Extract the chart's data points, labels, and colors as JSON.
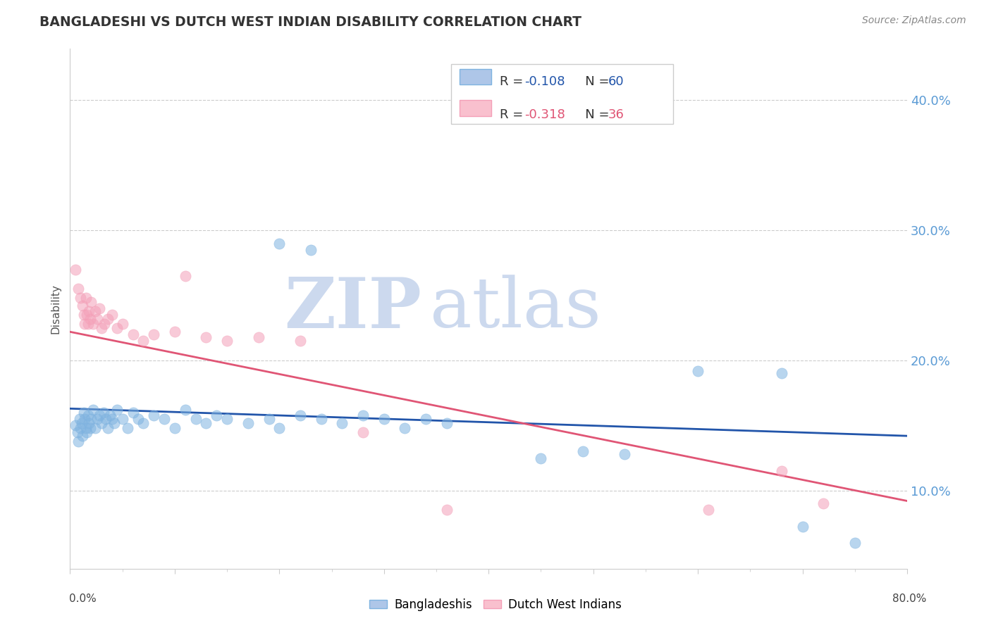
{
  "title": "BANGLADESHI VS DUTCH WEST INDIAN DISABILITY CORRELATION CHART",
  "source_text": "Source: ZipAtlas.com",
  "ylabel": "Disability",
  "yticks": [
    0.1,
    0.2,
    0.3,
    0.4
  ],
  "ytick_labels": [
    "10.0%",
    "20.0%",
    "30.0%",
    "40.0%"
  ],
  "xlim": [
    0.0,
    0.8
  ],
  "ylim": [
    0.04,
    0.44
  ],
  "blue_r": "-0.108",
  "blue_n": "60",
  "pink_r": "-0.318",
  "pink_n": "36",
  "blue_fill": "#aec6e8",
  "pink_fill": "#f9c0ce",
  "blue_scatter_color": "#7fb3e0",
  "pink_scatter_color": "#f4a0b8",
  "blue_line_color": "#2255aa",
  "pink_line_color": "#e05575",
  "blue_scatter": [
    [
      0.005,
      0.15
    ],
    [
      0.007,
      0.145
    ],
    [
      0.008,
      0.138
    ],
    [
      0.009,
      0.155
    ],
    [
      0.01,
      0.148
    ],
    [
      0.011,
      0.152
    ],
    [
      0.012,
      0.142
    ],
    [
      0.013,
      0.16
    ],
    [
      0.014,
      0.155
    ],
    [
      0.015,
      0.148
    ],
    [
      0.016,
      0.145
    ],
    [
      0.017,
      0.158
    ],
    [
      0.018,
      0.152
    ],
    [
      0.019,
      0.148
    ],
    [
      0.02,
      0.155
    ],
    [
      0.022,
      0.162
    ],
    [
      0.024,
      0.148
    ],
    [
      0.026,
      0.155
    ],
    [
      0.028,
      0.158
    ],
    [
      0.03,
      0.152
    ],
    [
      0.032,
      0.16
    ],
    [
      0.034,
      0.155
    ],
    [
      0.036,
      0.148
    ],
    [
      0.038,
      0.158
    ],
    [
      0.04,
      0.155
    ],
    [
      0.042,
      0.152
    ],
    [
      0.045,
      0.162
    ],
    [
      0.05,
      0.155
    ],
    [
      0.055,
      0.148
    ],
    [
      0.06,
      0.16
    ],
    [
      0.065,
      0.155
    ],
    [
      0.07,
      0.152
    ],
    [
      0.08,
      0.158
    ],
    [
      0.09,
      0.155
    ],
    [
      0.1,
      0.148
    ],
    [
      0.11,
      0.162
    ],
    [
      0.12,
      0.155
    ],
    [
      0.13,
      0.152
    ],
    [
      0.14,
      0.158
    ],
    [
      0.15,
      0.155
    ],
    [
      0.17,
      0.152
    ],
    [
      0.19,
      0.155
    ],
    [
      0.2,
      0.148
    ],
    [
      0.22,
      0.158
    ],
    [
      0.24,
      0.155
    ],
    [
      0.26,
      0.152
    ],
    [
      0.28,
      0.158
    ],
    [
      0.3,
      0.155
    ],
    [
      0.32,
      0.148
    ],
    [
      0.34,
      0.155
    ],
    [
      0.36,
      0.152
    ],
    [
      0.2,
      0.29
    ],
    [
      0.23,
      0.285
    ],
    [
      0.45,
      0.125
    ],
    [
      0.49,
      0.13
    ],
    [
      0.53,
      0.128
    ],
    [
      0.6,
      0.192
    ],
    [
      0.68,
      0.19
    ],
    [
      0.7,
      0.072
    ],
    [
      0.75,
      0.06
    ]
  ],
  "pink_scatter": [
    [
      0.005,
      0.27
    ],
    [
      0.008,
      0.255
    ],
    [
      0.01,
      0.248
    ],
    [
      0.012,
      0.242
    ],
    [
      0.013,
      0.235
    ],
    [
      0.014,
      0.228
    ],
    [
      0.015,
      0.248
    ],
    [
      0.016,
      0.235
    ],
    [
      0.017,
      0.228
    ],
    [
      0.018,
      0.238
    ],
    [
      0.019,
      0.232
    ],
    [
      0.02,
      0.245
    ],
    [
      0.022,
      0.228
    ],
    [
      0.024,
      0.238
    ],
    [
      0.026,
      0.232
    ],
    [
      0.028,
      0.24
    ],
    [
      0.03,
      0.225
    ],
    [
      0.033,
      0.228
    ],
    [
      0.036,
      0.232
    ],
    [
      0.04,
      0.235
    ],
    [
      0.045,
      0.225
    ],
    [
      0.05,
      0.228
    ],
    [
      0.06,
      0.22
    ],
    [
      0.07,
      0.215
    ],
    [
      0.08,
      0.22
    ],
    [
      0.1,
      0.222
    ],
    [
      0.11,
      0.265
    ],
    [
      0.13,
      0.218
    ],
    [
      0.15,
      0.215
    ],
    [
      0.18,
      0.218
    ],
    [
      0.22,
      0.215
    ],
    [
      0.28,
      0.145
    ],
    [
      0.36,
      0.085
    ],
    [
      0.61,
      0.085
    ],
    [
      0.68,
      0.115
    ],
    [
      0.72,
      0.09
    ]
  ],
  "watermark_zip": "ZIP",
  "watermark_atlas": "atlas",
  "watermark_color": "#ccd9ee",
  "background_color": "#ffffff",
  "grid_color": "#cccccc",
  "title_color": "#333333",
  "source_color": "#888888",
  "ylabel_color": "#555555",
  "tick_color": "#5b9bd5",
  "axis_color": "#cccccc"
}
